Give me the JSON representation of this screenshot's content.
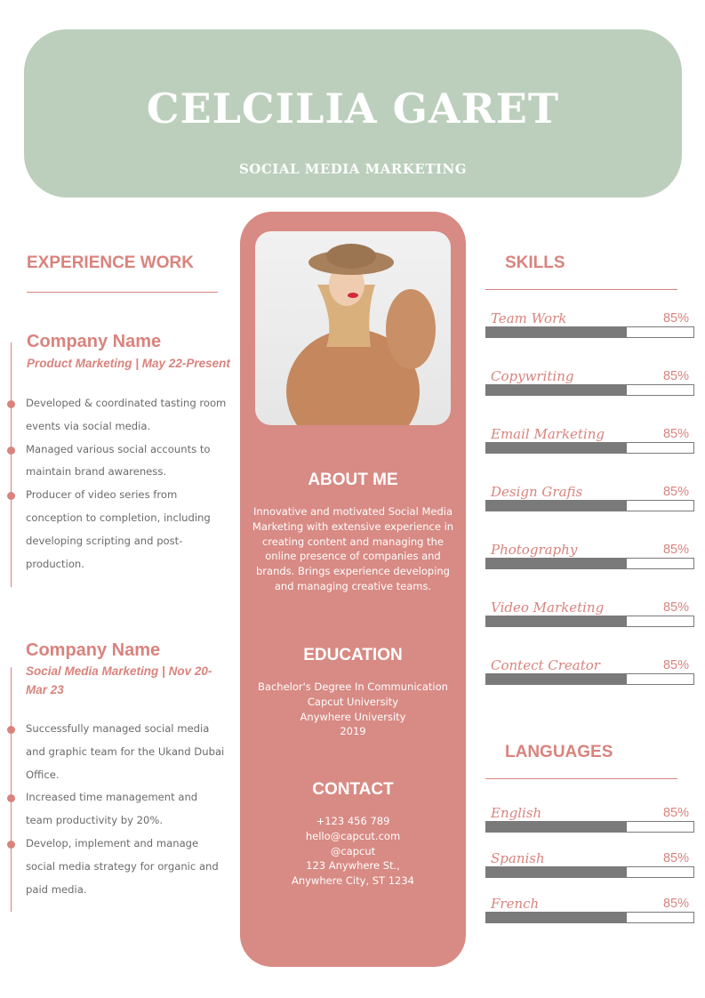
{
  "header": {
    "name": "CELCILIA GARET",
    "role": "SOCIAL MEDIA MARKETING"
  },
  "experience": {
    "title": "EXPERIENCE WORK",
    "jobs": [
      {
        "company": "Company Name",
        "role": "Product Marketing | May 22-Present",
        "bullets": [
          "Developed & coordinated tasting room events via social media.",
          "Managed various social accounts to maintain brand awareness.",
          "Producer of video series from conception to completion, including developing scripting and post-production."
        ]
      },
      {
        "company": "Company Name",
        "role": "Social Media Marketing | Nov 20-Mar 23",
        "bullets": [
          "Successfully managed social media and graphic team for the Ukand Dubai Office.",
          "Increased time management and team productivity by 20%.",
          "Develop, implement and manage social media strategy for organic and paid media."
        ]
      }
    ]
  },
  "about": {
    "title": "ABOUT ME",
    "text": "Innovative and motivated Social Media Marketing with extensive experience in creating content and managing the online presence of companies and brands. Brings experience developing and managing creative teams."
  },
  "education": {
    "title": "EDUCATION",
    "lines": [
      "Bachelor's Degree In Communication",
      "Capcut University",
      "Anywhere University",
      "2019"
    ]
  },
  "contact": {
    "title": "CONTACT",
    "lines": [
      "+123  456 789",
      "hello@capcut.com",
      "@capcut",
      "123 Anywhere St.,",
      "Anywhere City, ST 1234"
    ]
  },
  "skills": {
    "title": "SKILLS",
    "items": [
      {
        "label": "Team Work",
        "pct": "85%",
        "fill": 0.68
      },
      {
        "label": "Copywriting",
        "pct": "85%",
        "fill": 0.68
      },
      {
        "label": "Email Marketing",
        "pct": "85%",
        "fill": 0.68
      },
      {
        "label": "Design Grafis",
        "pct": "85%",
        "fill": 0.68
      },
      {
        "label": "Photography",
        "pct": "85%",
        "fill": 0.68
      },
      {
        "label": "Video Marketing",
        "pct": "85%",
        "fill": 0.68
      },
      {
        "label": "Contect Creator",
        "pct": "85%",
        "fill": 0.68
      }
    ]
  },
  "languages": {
    "title": "LANGUAGES",
    "items": [
      {
        "label": "English",
        "pct": "85%",
        "fill": 0.68
      },
      {
        "label": "Spanish",
        "pct": "85%",
        "fill": 0.68
      },
      {
        "label": "French",
        "pct": "85%",
        "fill": 0.68
      }
    ]
  },
  "colors": {
    "accent": "#d9837d",
    "header": "#bccfbc",
    "center": "#d88a84",
    "bar": "#7a7a7a"
  }
}
